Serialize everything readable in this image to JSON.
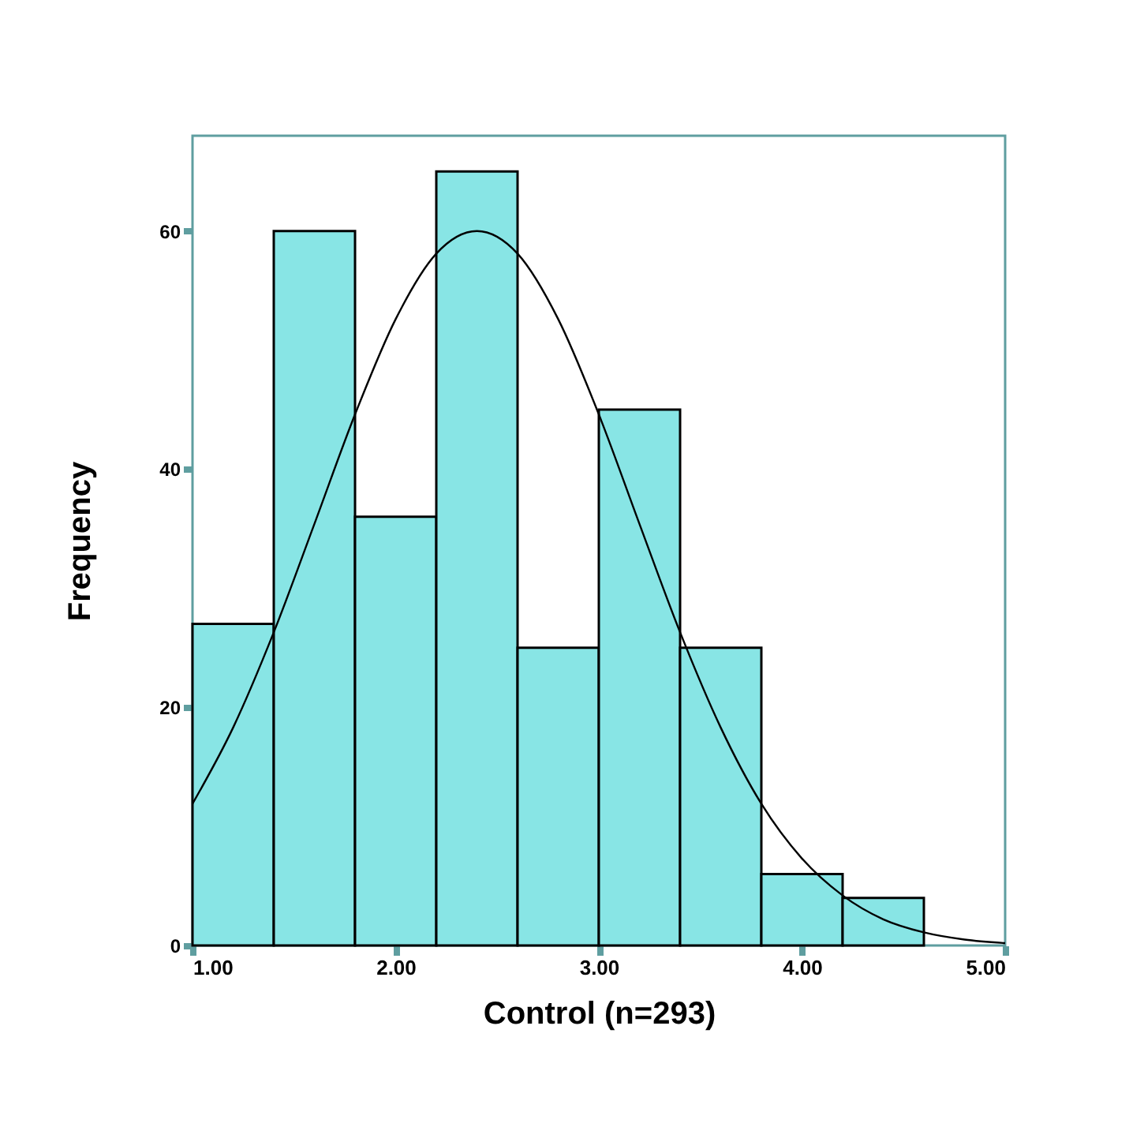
{
  "chart_data": {
    "type": "histogram",
    "xlabel": "Control (n=293)",
    "ylabel": "Frequency",
    "bins": [
      1.0,
      1.4,
      1.8,
      2.2,
      2.6,
      3.0,
      3.4,
      3.8,
      4.2,
      4.6
    ],
    "values": [
      27,
      60,
      36,
      65,
      25,
      45,
      25,
      6,
      4
    ],
    "color": "#88e5e5",
    "series": [
      {
        "type": "line",
        "color": "#000000",
        "x": [
          1.0,
          1.2,
          1.4,
          1.6,
          1.8,
          2.0,
          2.2,
          2.4,
          2.6,
          2.8,
          3.0,
          3.2,
          3.4,
          3.6,
          3.8,
          4.0,
          4.2,
          4.4,
          4.6,
          4.8,
          5.0
        ],
        "values": [
          11.9,
          18.3,
          26.3,
          35.4,
          44.6,
          52.6,
          58.1,
          60,
          58.1,
          52.6,
          44.6,
          35.4,
          26.3,
          18.3,
          11.9,
          7.3,
          4.2,
          2.2,
          1.1,
          0.5,
          0.2
        ]
      }
    ],
    "xlim": [
      1,
      5
    ],
    "ylim": [
      0,
      68
    ],
    "xticks": [
      {
        "value": 1,
        "label": "1.00"
      },
      {
        "value": 2,
        "label": "2.00"
      },
      {
        "value": 3,
        "label": "3.00"
      },
      {
        "value": 4,
        "label": "4.00"
      },
      {
        "value": 5,
        "label": "5.00"
      }
    ],
    "yticks": [
      0,
      20,
      40,
      60
    ],
    "tick_labels": [
      "x",
      "y"
    ]
  }
}
